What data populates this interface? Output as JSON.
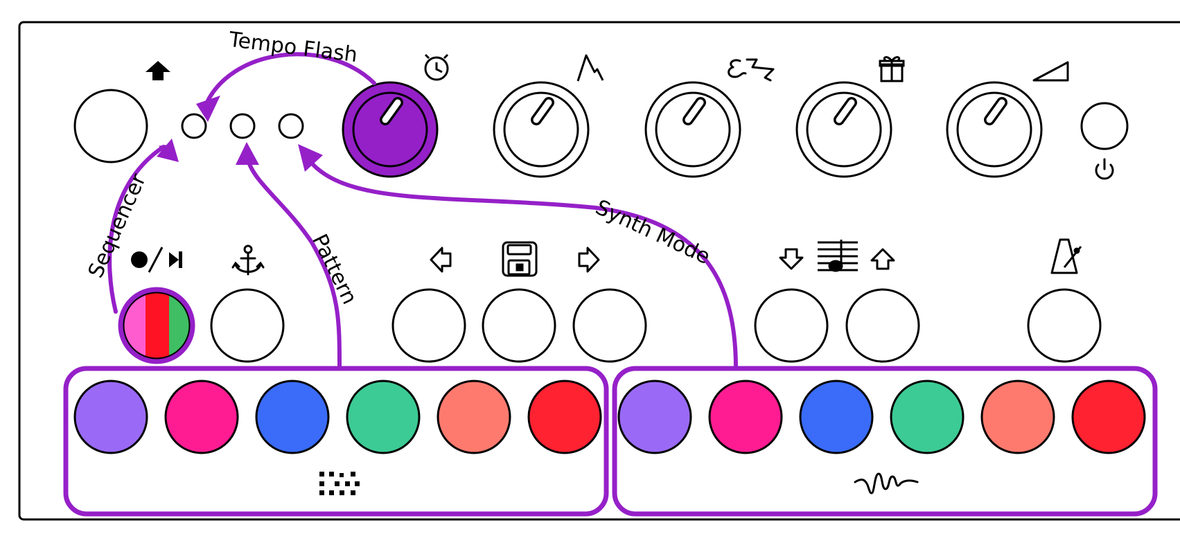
{
  "colors": {
    "accent": "#9520C8",
    "panel_stroke": "#000000",
    "pad_colors": [
      "#9A6AF7",
      "#FF1C92",
      "#3A6CF9",
      "#3CCB94",
      "#FF7A6E",
      "#FF2231"
    ],
    "record_button_stripes": [
      "#FF5CD0",
      "#FF1224",
      "#3FBE63"
    ]
  },
  "annotations": {
    "tempo_flash": "Tempo Flash",
    "sequencer": "Sequencer",
    "pattern": "Pattern",
    "synth_mode": "Synth Mode"
  },
  "icons": {
    "top_row": [
      "shift-arrow-up-icon",
      "clock-icon",
      "envelope-icon",
      "squiggle-icon",
      "gift-icon",
      "volume-ramp-icon",
      "power-icon"
    ],
    "middle_row": [
      "record-play-icon",
      "anchor-icon",
      "arrow-left-icon",
      "save-floppy-icon",
      "arrow-right-icon",
      "arrow-down-icon",
      "music-staff-icon",
      "arrow-up-icon",
      "metronome-icon"
    ],
    "pad_groups": [
      "drum-pattern-icon",
      "synth-wave-icon"
    ]
  },
  "knobs": [
    "tempo",
    "envelope",
    "squiggle",
    "gift",
    "volume"
  ],
  "highlighted_knob": "tempo",
  "leds": 3,
  "pad_groups": [
    {
      "name": "drums",
      "pads": 6
    },
    {
      "name": "synth",
      "pads": 6
    }
  ]
}
